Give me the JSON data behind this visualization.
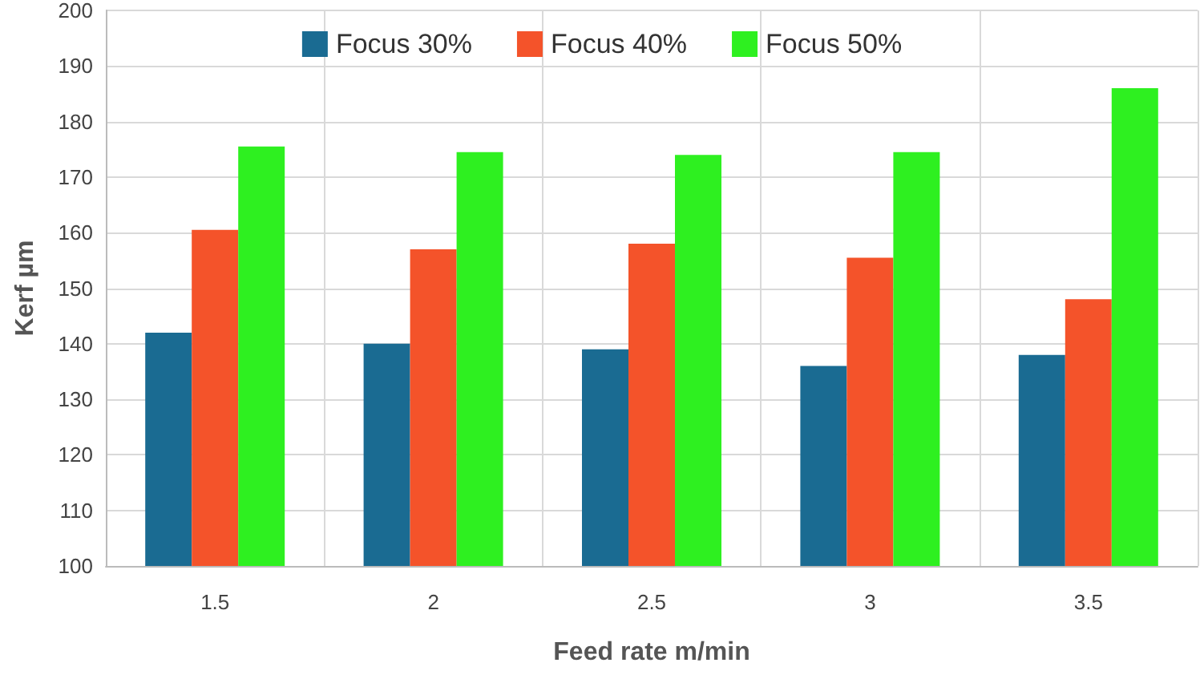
{
  "chart_data": {
    "type": "bar",
    "xlabel": "Feed rate m/min",
    "ylabel": "Kerf µm",
    "categories": [
      "1.5",
      "2",
      "2.5",
      "3",
      "3.5"
    ],
    "series": [
      {
        "name": "Focus 30%",
        "color": "#1a6b92",
        "values": [
          142,
          140,
          139,
          136,
          138
        ]
      },
      {
        "name": "Focus 40%",
        "color": "#f4532a",
        "values": [
          160.5,
          157,
          158,
          155.5,
          148
        ]
      },
      {
        "name": "Focus 50%",
        "color": "#2ef020",
        "values": [
          175.5,
          174.5,
          174,
          174.5,
          186
        ]
      }
    ],
    "ylim": [
      100,
      200
    ],
    "yticks": [
      100,
      110,
      120,
      130,
      140,
      150,
      160,
      170,
      180,
      190,
      200
    ],
    "grid": true,
    "legend": "top"
  }
}
